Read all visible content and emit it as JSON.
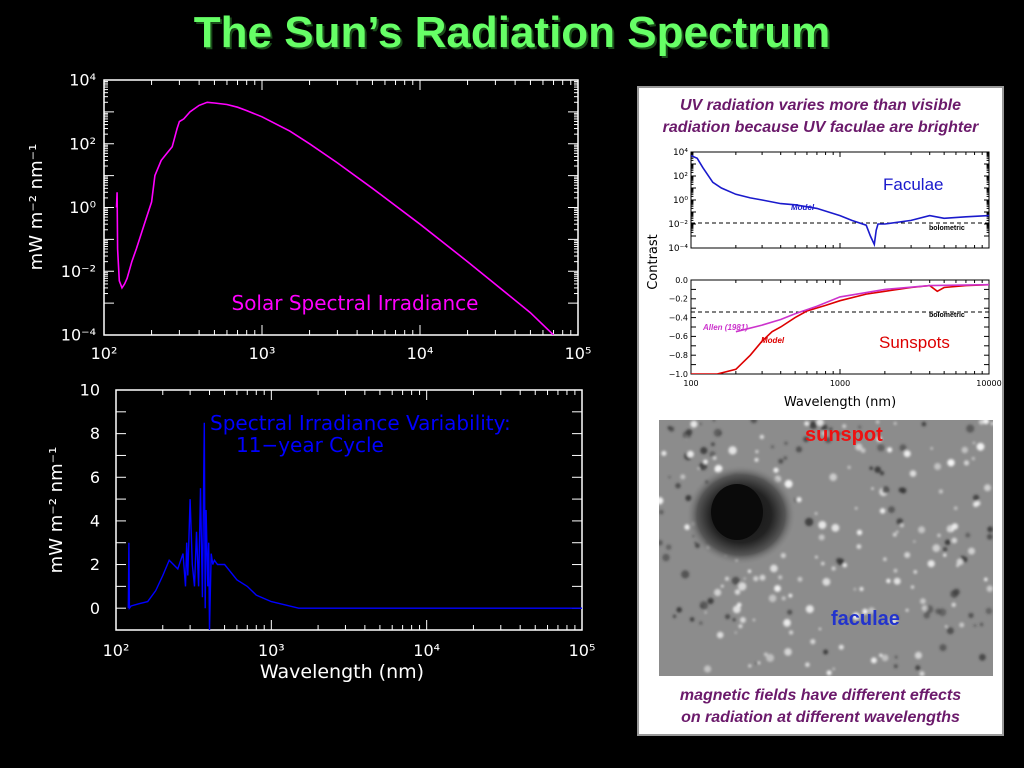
{
  "title": "The Sun’s Radiation Spectrum",
  "colors": {
    "title": "#66ff66",
    "irradiance": "#ff00ff",
    "variability": "#0000ff",
    "faculae": "#1a1acc",
    "sunspots": "#dd0000",
    "allen": "#cc33cc",
    "caption": "#6b1a6b"
  },
  "chart_data": [
    {
      "type": "line",
      "title": "Solar Spectral Irradiance",
      "xlabel": "",
      "ylabel": "mW m⁻² nm⁻¹",
      "xscale": "log",
      "yscale": "log",
      "xlim": [
        100,
        100000
      ],
      "ylim": [
        0.0001,
        10000
      ],
      "xticks": [
        "10²",
        "10³",
        "10⁴",
        "10⁵"
      ],
      "yticks": [
        "10⁴",
        "10²",
        "10⁰",
        "10⁻²",
        "10⁻⁴"
      ],
      "series": [
        {
          "name": "Solar Spectral Irradiance",
          "x": [
            120,
            121,
            122,
            125,
            130,
            135,
            140,
            150,
            160,
            180,
            200,
            210,
            230,
            250,
            270,
            290,
            300,
            320,
            350,
            400,
            450,
            500,
            600,
            700,
            800,
            1000,
            1500,
            2000,
            3000,
            5000,
            10000,
            20000,
            50000,
            70000
          ],
          "y": [
            1,
            3,
            0.05,
            0.005,
            0.003,
            0.004,
            0.006,
            0.02,
            0.05,
            0.3,
            1.5,
            10,
            30,
            50,
            80,
            300,
            500,
            600,
            1000,
            1600,
            2000,
            1900,
            1700,
            1400,
            1100,
            700,
            250,
            100,
            25,
            4,
            0.3,
            0.02,
            0.0005,
            0.0001
          ]
        }
      ]
    },
    {
      "type": "line",
      "title": "Spectral Irradiance Variability:\n 11-year Cycle",
      "title_lines": [
        "Spectral Irradiance Variability:",
        "11−year Cycle"
      ],
      "xlabel": "Wavelength (nm)",
      "ylabel": "mW m⁻² nm⁻¹",
      "xscale": "log",
      "xlim": [
        100,
        100000
      ],
      "ylim": [
        -1,
        10
      ],
      "xticks": [
        "10²",
        "10³",
        "10⁴",
        "10⁵"
      ],
      "yticks": [
        "10",
        "8",
        "6",
        "4",
        "2",
        "0"
      ],
      "series": [
        {
          "name": "11-year cycle variability",
          "x": [
            120,
            121,
            122,
            125,
            140,
            160,
            180,
            200,
            220,
            250,
            270,
            280,
            285,
            290,
            300,
            310,
            320,
            330,
            340,
            350,
            360,
            370,
            375,
            380,
            390,
            395,
            400,
            410,
            420,
            430,
            450,
            500,
            600,
            700,
            800,
            1000,
            1500,
            2000,
            5000,
            10000,
            100000
          ],
          "y": [
            0,
            3,
            0,
            0.1,
            0.2,
            0.3,
            0.8,
            1.5,
            2.2,
            1.8,
            2.5,
            1.0,
            3.0,
            1.5,
            5.0,
            2.0,
            1.0,
            3.5,
            1.0,
            5.5,
            0.5,
            8.5,
            0.0,
            4.5,
            1.0,
            3.0,
            -1.0,
            2.5,
            2.0,
            2.2,
            2.0,
            2.0,
            1.3,
            1.0,
            0.6,
            0.3,
            0.0,
            0.0,
            0.0,
            0.0,
            0.0
          ]
        }
      ]
    },
    {
      "type": "line",
      "title": "Faculae",
      "ylabel": "Contrast",
      "xscale": "log",
      "yscale": "log",
      "xlim": [
        100,
        10000
      ],
      "ylim": [
        0.0001,
        10000
      ],
      "yticks": [
        "10⁴",
        "10²",
        "10⁰",
        "10⁻²",
        "10⁻⁴"
      ],
      "annotations": [
        "Model",
        "bolometric"
      ],
      "series": [
        {
          "name": "Model",
          "x": [
            100,
            110,
            120,
            140,
            160,
            200,
            250,
            300,
            400,
            500,
            700,
            1000,
            1200,
            1500,
            1600,
            1700,
            1750,
            1800,
            2000,
            3000,
            4000,
            5000,
            7000,
            10000
          ],
          "y": [
            5000,
            3000,
            500,
            30,
            10,
            3,
            1.5,
            1,
            0.5,
            0.4,
            0.2,
            0.05,
            0.02,
            0.008,
            0.001,
            0.0002,
            0.003,
            0.01,
            0.01,
            0.02,
            0.05,
            0.03,
            0.04,
            0.05
          ]
        }
      ],
      "reference": {
        "name": "bolometric",
        "y": 0.012
      }
    },
    {
      "type": "line",
      "title": "Sunspots",
      "xlabel": "Wavelength (nm)",
      "ylabel": "Contrast",
      "xscale": "log",
      "xlim": [
        100,
        10000
      ],
      "ylim": [
        -1.0,
        0.0
      ],
      "xticks": [
        "100",
        "1000",
        "10000"
      ],
      "yticks": [
        "0.0",
        "−0.2",
        "−0.4",
        "−0.6",
        "−0.8",
        "−1.0"
      ],
      "annotations": [
        "Model",
        "Allen (1981)",
        "bolometric"
      ],
      "series": [
        {
          "name": "Model",
          "x": [
            100,
            150,
            200,
            250,
            300,
            350,
            400,
            500,
            600,
            800,
            1000,
            1500,
            2000,
            3000,
            4000,
            4500,
            5000,
            7000,
            10000
          ],
          "y": [
            -1.0,
            -1.0,
            -0.95,
            -0.8,
            -0.65,
            -0.55,
            -0.5,
            -0.4,
            -0.33,
            -0.27,
            -0.22,
            -0.15,
            -0.12,
            -0.08,
            -0.06,
            -0.12,
            -0.08,
            -0.06,
            -0.05
          ]
        },
        {
          "name": "Allen (1981)",
          "x": [
            200,
            300,
            400,
            500,
            700,
            1000,
            2000,
            4000,
            10000
          ],
          "y": [
            -0.55,
            -0.48,
            -0.42,
            -0.36,
            -0.28,
            -0.18,
            -0.1,
            -0.06,
            -0.05
          ]
        }
      ],
      "reference": {
        "name": "bolometric",
        "y": -0.34
      }
    }
  ],
  "panel": {
    "caption_top_1": "UV radiation varies more than visible",
    "caption_top_2": "radiation because UV faculae are brighter",
    "caption_bottom_1": "magnetic fields have different effects",
    "caption_bottom_2": "on radiation at different wavelengths",
    "faculae_label": "Faculae",
    "sunspots_label": "Sunspots",
    "model_label": "Model",
    "allen_label": "Allen (1981)",
    "bolometric_label": "bolometric",
    "contrast_label": "Contrast",
    "wavelength_label": "Wavelength (nm)",
    "photo_sunspot_label": "sunspot",
    "photo_faculae_label": "faculae"
  }
}
